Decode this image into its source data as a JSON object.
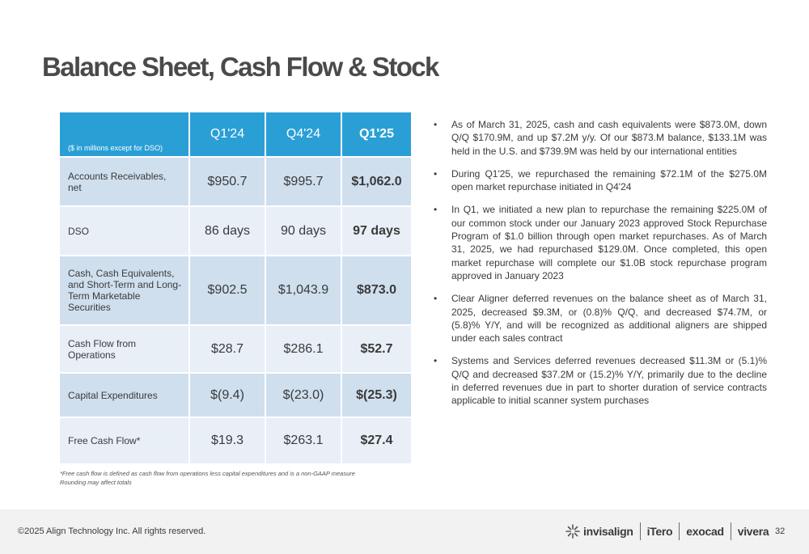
{
  "title": "Balance Sheet, Cash Flow & Stock",
  "table": {
    "note": "($ in millions except for DSO)",
    "headers": [
      "Q1'24",
      "Q4'24",
      "Q1'25"
    ],
    "rows": [
      {
        "label": "Accounts Receivables, net",
        "values": [
          "$950.7",
          "$995.7",
          "$1,062.0"
        ]
      },
      {
        "label": "DSO",
        "values": [
          "86 days",
          "90 days",
          "97 days"
        ]
      },
      {
        "label": "Cash, Cash Equivalents, and Short-Term and Long-Term Marketable Securities",
        "values": [
          "$902.5",
          "$1,043.9",
          "$873.0"
        ]
      },
      {
        "label": "Cash Flow from Operations",
        "values": [
          "$28.7",
          "$286.1",
          "$52.7"
        ]
      },
      {
        "label": "Capital Expenditures",
        "values": [
          "$(9.4)",
          "$(23.0)",
          "$(25.3)"
        ]
      },
      {
        "label": "Free Cash Flow*",
        "values": [
          "$19.3",
          "$263.1",
          "$27.4"
        ]
      }
    ]
  },
  "footnotes": [
    "*Free cash flow is defined as cash flow from operations less capital expenditures and is a non-GAAP measure",
    "Rounding may affect totals"
  ],
  "bullets": [
    "As of March 31, 2025, cash and cash equivalents were $873.0M, down Q/Q $170.9M, and up $7.2M y/y. Of our $873.M balance, $133.1M was held in the U.S. and $739.9M was held by our international entities",
    "During Q1'25, we repurchased the remaining $72.1M of the $275.0M open market repurchase initiated in Q4'24",
    "In Q1, we initiated a new plan to repurchase the remaining $225.0M of our common stock under our January 2023 approved Stock Repurchase Program of $1.0 billion through open market repurchases. As of March 31, 2025, we had repurchased $129.0M. Once completed, this open market repurchase will complete our $1.0B stock repurchase program approved in January 2023",
    "Clear Aligner deferred revenues on the balance sheet as of March 31, 2025, decreased $9.3M, or (0.8)% Q/Q, and decreased $74.7M, or (5.8)% Y/Y, and will be recognized as additional aligners are shipped under each sales contract",
    "Systems and Services deferred revenues decreased $11.3M or (5.1)% Q/Q and decreased $37.2M or (15.2)% Y/Y, primarily due to the decline in deferred revenues due in part to shorter duration of service contracts applicable to initial scanner system purchases"
  ],
  "footer": {
    "copyright": "©2025 Align Technology Inc. All rights reserved.",
    "brands": [
      "invisalign",
      "iTero",
      "exocad",
      "vivera"
    ],
    "page_number": "32"
  },
  "colors": {
    "header_blue": "#2a9fd6",
    "row_dark": "#cfdfee",
    "row_light": "#e8eff7"
  }
}
